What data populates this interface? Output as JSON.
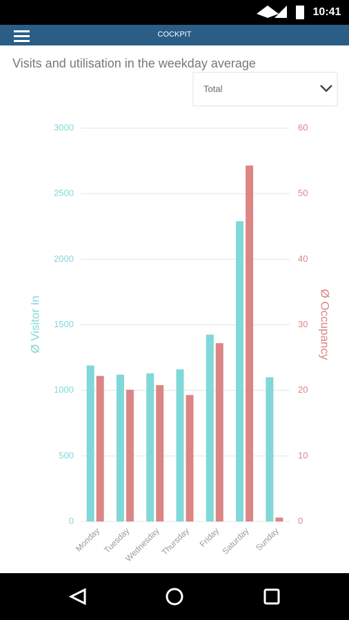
{
  "status_bar": {
    "time": "10:41"
  },
  "app_bar": {
    "title": "COCKPIT"
  },
  "page": {
    "title": "Visits and utilisation in the weekday average",
    "dropdown": "Total"
  },
  "chart_data": {
    "type": "bar",
    "categories": [
      "Monday",
      "Tuesday",
      "Wednesday",
      "Thursday",
      "Friday",
      "Saturday",
      "Sunday"
    ],
    "series": [
      {
        "color": "#80d8d8",
        "values": [
          1190,
          1120,
          1130,
          1160,
          1425,
          2290,
          1100
        ]
      },
      {
        "color": "#dc8585",
        "axis": "y2",
        "values": [
          22.2,
          20.1,
          20.8,
          19.3,
          27.2,
          54.3,
          0.6
        ]
      }
    ],
    "ylabel": "Ø Visitor In",
    "y2label": "Ø Occupancy",
    "ylim": [
      0,
      3000
    ],
    "yticks": [
      0,
      500,
      1000,
      1500,
      2000,
      2500,
      3000
    ],
    "y2lim": [
      0,
      60
    ],
    "y2ticks": [
      0,
      10,
      20,
      30,
      40,
      50,
      60
    ],
    "grid": true
  }
}
